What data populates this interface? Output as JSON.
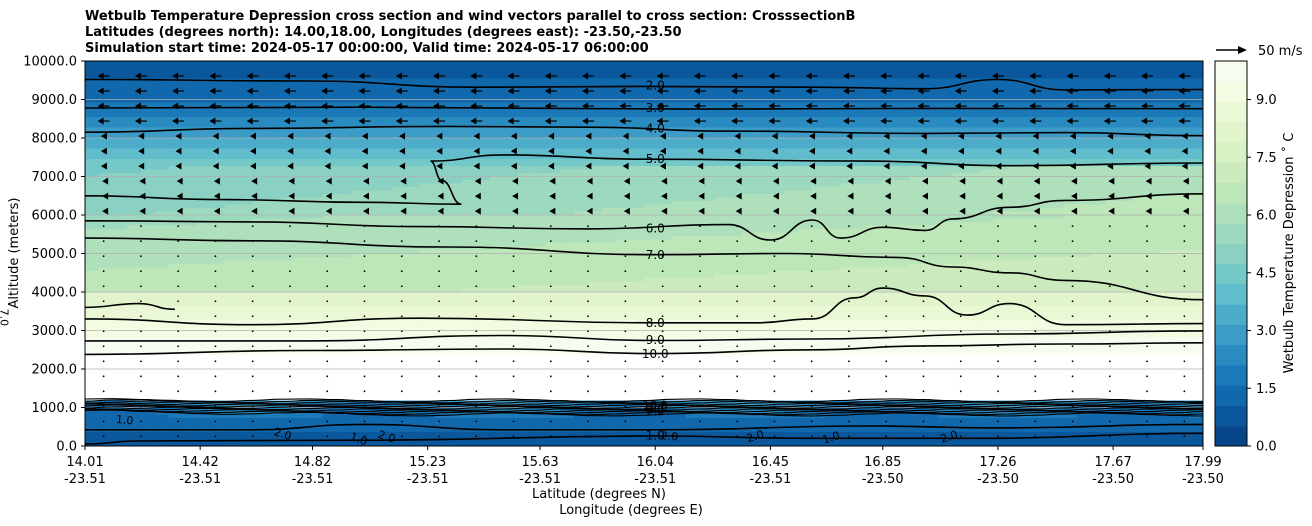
{
  "chart_data": {
    "type": "contour-cross-section",
    "title_lines": [
      "Wetbulb Temperature Depression cross section and wind vectors parallel to cross section: CrosssectionB",
      "Latitudes (degrees north): 14.00,18.00, Longitudes (degrees east): -23.50,-23.50",
      "Simulation start time: 2024-05-17 00:00:00, Valid time: 2024-05-17 06:00:00"
    ],
    "ylabel": "Altitude (meters)",
    "xlabel_lat": "Latitude (degrees N)",
    "xlabel_lon": "Longitude (degrees E)",
    "ylim": [
      0,
      10000
    ],
    "y_ticks": [
      "0.0",
      "1000.0",
      "2000.0",
      "3000.0",
      "4000.0",
      "5000.0",
      "6000.0",
      "7000.0",
      "8000.0",
      "9000.0",
      "10000.0"
    ],
    "xlim": [
      14.01,
      17.99
    ],
    "x_ticks": [
      {
        "lat": "14.01",
        "lon": "-23.51"
      },
      {
        "lat": "14.42",
        "lon": "-23.51"
      },
      {
        "lat": "14.82",
        "lon": "-23.51"
      },
      {
        "lat": "15.23",
        "lon": "-23.51"
      },
      {
        "lat": "15.63",
        "lon": "-23.51"
      },
      {
        "lat": "16.04",
        "lon": "-23.51"
      },
      {
        "lat": "16.45",
        "lon": "-23.51"
      },
      {
        "lat": "16.85",
        "lon": "-23.50"
      },
      {
        "lat": "17.26",
        "lon": "-23.50"
      },
      {
        "lat": "17.67",
        "lon": "-23.50"
      },
      {
        "lat": "17.99",
        "lon": "-23.50"
      }
    ],
    "grid": true,
    "colorbar": {
      "label": "Wetbulb Temperature Depression ˚ C",
      "range": [
        0,
        10
      ],
      "ticks": [
        "0.0",
        "1.5",
        "3.0",
        "4.5",
        "6.0",
        "7.5",
        "9.0"
      ],
      "colors": [
        "#08468a",
        "#0a579c",
        "#1168ad",
        "#1c79b8",
        "#2a8bc0",
        "#3c9cc7",
        "#4eaccb",
        "#61bccb",
        "#75c8c8",
        "#8ad1c3",
        "#9dd9be",
        "#aee0bb",
        "#bde6b9",
        "#cbebbe",
        "#d7f0c4",
        "#e2f4cc",
        "#ebf8d6",
        "#f3fbe2",
        "#f7fcf0"
      ]
    },
    "quiver_key": {
      "label": "50 m/s",
      "speed": 50
    },
    "contour_levels": [
      "1.0",
      "2.0",
      "3.0",
      "4.0",
      "5.0",
      "6.0",
      "7.0",
      "8.0",
      "9.0",
      "10.0"
    ],
    "contours": [
      {
        "level": 2.0,
        "label": "2.0",
        "points": [
          [
            14.01,
            9520
          ],
          [
            14.8,
            9480
          ],
          [
            15.4,
            9320
          ],
          [
            16.0,
            9340
          ],
          [
            16.6,
            9320
          ],
          [
            17.0,
            9280
          ],
          [
            17.26,
            9520
          ],
          [
            17.5,
            9250
          ],
          [
            17.99,
            9260
          ]
        ]
      },
      {
        "level": 3.0,
        "label": "3.0",
        "points": [
          [
            14.01,
            8780
          ],
          [
            15.0,
            8800
          ],
          [
            15.7,
            8770
          ],
          [
            16.2,
            8750
          ],
          [
            17.0,
            8770
          ],
          [
            17.99,
            8760
          ]
        ]
      },
      {
        "level": 4.0,
        "label": "4.0",
        "points": [
          [
            14.01,
            8150
          ],
          [
            14.6,
            8250
          ],
          [
            15.3,
            8300
          ],
          [
            15.8,
            8280
          ],
          [
            16.3,
            8180
          ],
          [
            17.0,
            8120
          ],
          [
            17.5,
            8140
          ],
          [
            17.99,
            8060
          ]
        ]
      },
      {
        "level": 5.0,
        "label": "5.0",
        "points": [
          [
            15.24,
            7400
          ],
          [
            15.5,
            7560
          ],
          [
            16.0,
            7450
          ],
          [
            16.8,
            7400
          ],
          [
            17.3,
            7280
          ],
          [
            17.99,
            7350
          ]
        ]
      },
      {
        "level": 5.0,
        "label": "",
        "points": [
          [
            14.01,
            6500
          ],
          [
            14.5,
            6400
          ],
          [
            15.0,
            6330
          ],
          [
            15.35,
            6280
          ],
          [
            15.28,
            6900
          ],
          [
            15.24,
            7400
          ]
        ]
      },
      {
        "level": 6.0,
        "label": "6.0",
        "points": [
          [
            14.01,
            5850
          ],
          [
            14.6,
            5820
          ],
          [
            15.2,
            5700
          ],
          [
            15.8,
            5640
          ],
          [
            16.3,
            5750
          ],
          [
            16.45,
            5350
          ],
          [
            16.6,
            5870
          ],
          [
            16.7,
            5400
          ],
          [
            16.85,
            5680
          ],
          [
            17.0,
            5600
          ],
          [
            17.1,
            5900
          ],
          [
            17.3,
            6200
          ],
          [
            17.5,
            6380
          ],
          [
            17.99,
            6550
          ]
        ]
      },
      {
        "level": 7.0,
        "label": "7.0",
        "points": [
          [
            14.01,
            5400
          ],
          [
            14.6,
            5330
          ],
          [
            15.3,
            5170
          ],
          [
            16.04,
            4970
          ],
          [
            16.5,
            5000
          ],
          [
            16.9,
            4900
          ],
          [
            17.1,
            4650
          ],
          [
            17.3,
            4500
          ],
          [
            17.5,
            4300
          ],
          [
            17.99,
            3800
          ]
        ]
      },
      {
        "level": 8.0,
        "label": "8.0",
        "points": [
          [
            14.01,
            3300
          ],
          [
            14.6,
            3150
          ],
          [
            15.2,
            3320
          ],
          [
            16.04,
            3200
          ],
          [
            16.4,
            3200
          ],
          [
            16.6,
            3300
          ],
          [
            16.75,
            3850
          ],
          [
            16.85,
            4100
          ],
          [
            17.0,
            3900
          ],
          [
            17.15,
            3400
          ],
          [
            17.3,
            3700
          ],
          [
            17.5,
            3150
          ],
          [
            17.99,
            3180
          ]
        ]
      },
      {
        "level": 7.0,
        "label": "7.0",
        "points": [
          [
            14.01,
            3600
          ],
          [
            14.2,
            3700
          ],
          [
            14.33,
            3550
          ]
        ]
      },
      {
        "level": 9.0,
        "label": "9.0",
        "points": [
          [
            14.01,
            2730
          ],
          [
            14.8,
            2730
          ],
          [
            15.5,
            2870
          ],
          [
            16.04,
            2740
          ],
          [
            16.6,
            2780
          ],
          [
            17.3,
            2910
          ],
          [
            17.99,
            2990
          ]
        ]
      },
      {
        "level": 10.0,
        "label": "10.0",
        "points": [
          [
            14.01,
            2380
          ],
          [
            14.8,
            2480
          ],
          [
            15.5,
            2520
          ],
          [
            16.04,
            2400
          ],
          [
            16.6,
            2500
          ],
          [
            17.0,
            2600
          ],
          [
            17.5,
            2650
          ],
          [
            17.99,
            2680
          ]
        ]
      },
      {
        "level": 1.0,
        "label": "1.0",
        "points": [
          [
            14.01,
            50
          ],
          [
            14.2,
            130
          ],
          [
            15.0,
            150
          ],
          [
            16.04,
            260
          ],
          [
            16.6,
            200
          ],
          [
            17.2,
            200
          ],
          [
            17.99,
            330
          ]
        ]
      },
      {
        "level": 2.0,
        "label": "2.0",
        "points": [
          [
            14.01,
            420
          ],
          [
            14.6,
            420
          ],
          [
            15.0,
            560
          ],
          [
            15.5,
            420
          ],
          [
            16.04,
            420
          ],
          [
            16.8,
            520
          ],
          [
            17.26,
            470
          ],
          [
            17.99,
            560
          ]
        ]
      }
    ],
    "inline_labels": [
      "2.0",
      "3.0",
      "4.0",
      "5.0",
      "6.0",
      "7.0",
      "8.0",
      "9.0",
      "10.0",
      "1.0",
      "1.0",
      "2.0",
      "2.0",
      "2.0",
      "2.0",
      "1.0",
      "2.0",
      "1.0",
      "2.0",
      "7.0",
      "1.0",
      "10.0"
    ]
  }
}
